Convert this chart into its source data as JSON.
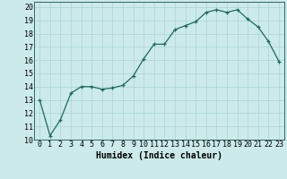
{
  "x": [
    0,
    1,
    2,
    3,
    4,
    5,
    6,
    7,
    8,
    9,
    10,
    11,
    12,
    13,
    14,
    15,
    16,
    17,
    18,
    19,
    20,
    21,
    22,
    23
  ],
  "y": [
    13.0,
    10.3,
    11.5,
    13.5,
    14.0,
    14.0,
    13.8,
    13.9,
    14.1,
    14.8,
    16.1,
    17.2,
    17.2,
    18.3,
    18.6,
    18.9,
    19.6,
    19.8,
    19.6,
    19.8,
    19.1,
    18.5,
    17.4,
    15.9
  ],
  "xlabel": "Humidex (Indice chaleur)",
  "xlim": [
    -0.5,
    23.5
  ],
  "ylim": [
    10,
    20.4
  ],
  "yticks": [
    10,
    11,
    12,
    13,
    14,
    15,
    16,
    17,
    18,
    19,
    20
  ],
  "xticks": [
    0,
    1,
    2,
    3,
    4,
    5,
    6,
    7,
    8,
    9,
    10,
    11,
    12,
    13,
    14,
    15,
    16,
    17,
    18,
    19,
    20,
    21,
    22,
    23
  ],
  "line_color": "#1a6b5a",
  "marker": "+",
  "bg_color": "#cceaea",
  "grid_color": "#aad4d4",
  "label_fontsize": 7,
  "tick_fontsize": 6
}
